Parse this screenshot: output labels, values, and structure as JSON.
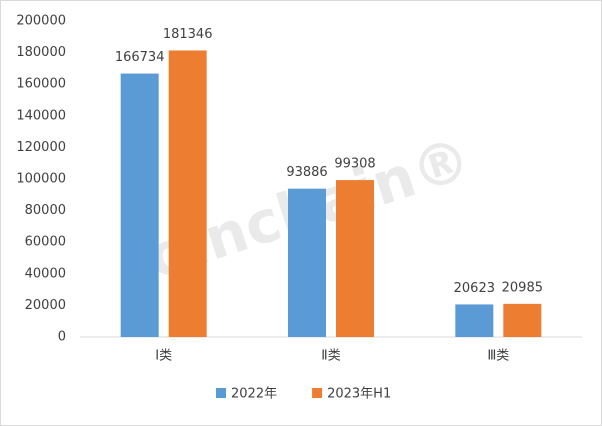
{
  "chart_data": {
    "type": "bar",
    "categories": [
      "Ⅰ类",
      "Ⅱ类",
      "Ⅲ类"
    ],
    "series": [
      {
        "name": "2022年",
        "color": "#5b9bd5",
        "values": [
          166734,
          93886,
          20623
        ]
      },
      {
        "name": "2023年H1",
        "color": "#ed7d31",
        "values": [
          181346,
          99308,
          20985
        ]
      }
    ],
    "ylim": [
      0,
      200000
    ],
    "yticks": [
      0,
      20000,
      40000,
      60000,
      80000,
      100000,
      120000,
      140000,
      160000,
      180000,
      200000
    ],
    "grid": false,
    "watermark": "Joinchain®"
  }
}
